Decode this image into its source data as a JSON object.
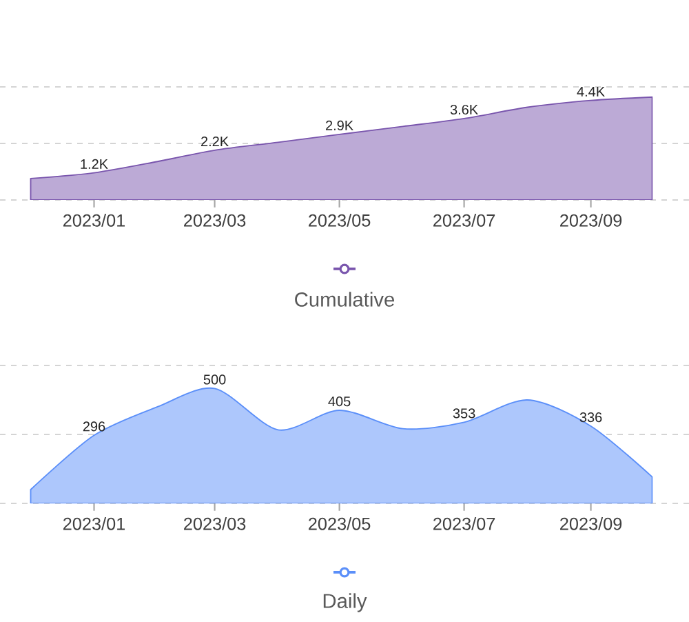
{
  "chart_data": [
    {
      "type": "area",
      "x": [
        "2022-12-01",
        "2023-01-01",
        "2023-02-01",
        "2023-03-01",
        "2023-04-01",
        "2023-05-01",
        "2023-06-01",
        "2023-07-01",
        "2023-08-01",
        "2023-09-01",
        "2023-10-01"
      ],
      "series": [
        {
          "name": "Cumulative",
          "color": "#bcaad6",
          "values": [
            950,
            1200,
            1700,
            2200,
            2550,
            2900,
            3250,
            3600,
            4100,
            4400,
            4550
          ],
          "value_labels": [
            null,
            "1.2K",
            null,
            "2.2K",
            null,
            "2.9K",
            null,
            "3.6K",
            null,
            "4.4K",
            null
          ]
        }
      ],
      "xlim": [
        "2022-11-16",
        "2023-10-19"
      ],
      "xticks": [
        {
          "value": "2023-01",
          "label": "2023/01"
        },
        {
          "value": "2023-03",
          "label": "2023/03"
        },
        {
          "value": "2023-05",
          "label": "2023/05"
        },
        {
          "value": "2023-07",
          "label": "2023/07"
        },
        {
          "value": "2023-09",
          "label": "2023/09"
        }
      ],
      "ylim": [
        0,
        5000
      ],
      "yticks": [
        {
          "value": 0,
          "label": null
        },
        {
          "value": 2500,
          "label": null
        },
        {
          "value": 5000,
          "label": null
        }
      ],
      "grid": "y",
      "legend": "bottom",
      "tick_labels": "x"
    },
    {
      "type": "area",
      "x": [
        "2022-12-01",
        "2023-01-01",
        "2023-02-01",
        "2023-03-01",
        "2023-04-01",
        "2023-05-01",
        "2023-06-01",
        "2023-07-01",
        "2023-08-01",
        "2023-09-01",
        "2023-10-01"
      ],
      "series": [
        {
          "name": "Daily",
          "color": "#adc7fc",
          "values": [
            60,
            296,
            420,
            500,
            320,
            405,
            325,
            353,
            450,
            336,
            115
          ],
          "value_labels": [
            null,
            "296",
            null,
            "500",
            null,
            "405",
            null,
            "353",
            null,
            "336",
            null
          ]
        }
      ],
      "xlim": [
        "2022-11-16",
        "2023-10-19"
      ],
      "xticks": [
        {
          "value": "2023-01",
          "label": "2023/01"
        },
        {
          "value": "2023-03",
          "label": "2023/03"
        },
        {
          "value": "2023-05",
          "label": "2023/05"
        },
        {
          "value": "2023-07",
          "label": "2023/07"
        },
        {
          "value": "2023-09",
          "label": "2023/09"
        }
      ],
      "ylim": [
        0,
        600
      ],
      "yticks": [
        {
          "value": 0,
          "label": null
        },
        {
          "value": 300,
          "label": null
        },
        {
          "value": 600,
          "label": null
        }
      ],
      "grid": "y",
      "legend": "bottom",
      "tick_labels": "x"
    }
  ]
}
